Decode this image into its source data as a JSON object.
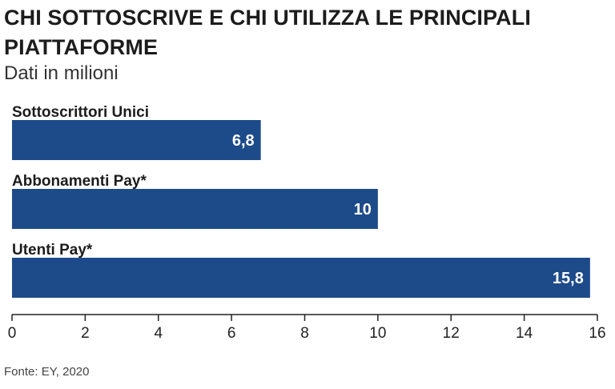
{
  "title": "CHI SOTTOSCRIVE E CHI UTILIZZA LE PRINCIPALI PIATTAFORME",
  "subtitle": "Dati in milioni",
  "source": "Fonte: EY, 2020",
  "colors": {
    "bar": "#1d4b8a",
    "label_inside": "#ffffff",
    "axis": "#222222"
  },
  "chart_data": {
    "type": "bar",
    "orientation": "horizontal",
    "categories": [
      "Sottoscrittori Unici",
      "Abbonamenti Pay*",
      "Utenti Pay*"
    ],
    "values": [
      6.8,
      10,
      15.8
    ],
    "value_labels": [
      "6,8",
      "10",
      "15,8"
    ],
    "xlim": [
      0,
      16
    ],
    "xticks": [
      0,
      2,
      4,
      6,
      8,
      10,
      12,
      14,
      16
    ],
    "title": "CHI SOTTOSCRIVE E CHI UTILIZZA LE PRINCIPALI PIATTAFORME",
    "subtitle": "Dati in milioni",
    "xlabel": "",
    "ylabel": "",
    "grid": false,
    "legend": false
  }
}
